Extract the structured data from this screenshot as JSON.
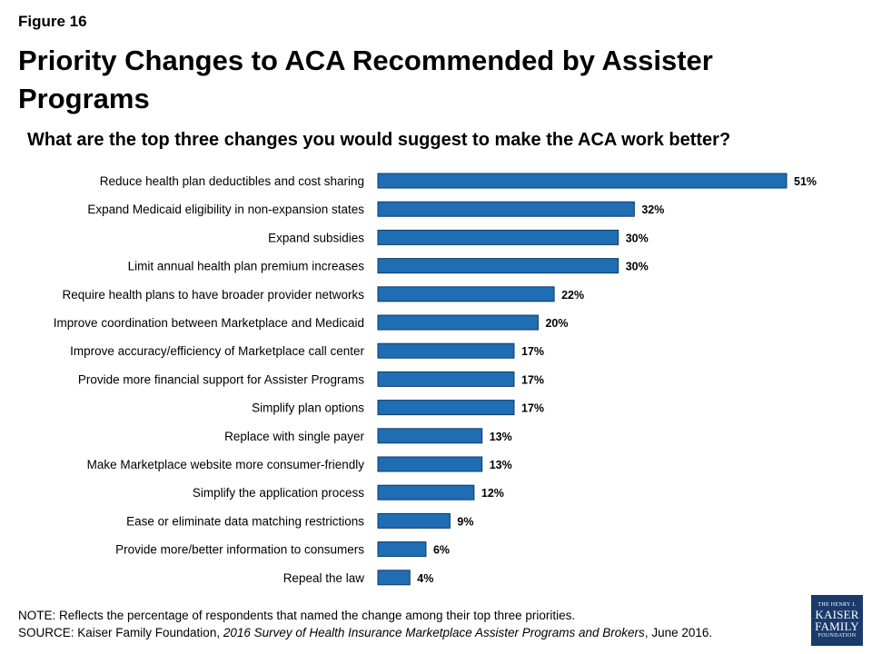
{
  "figure_label": "Figure 16",
  "title": "Priority Changes to ACA Recommended by Assister Programs",
  "chart_data": {
    "type": "bar",
    "orientation": "horizontal",
    "title": "What are the top three changes you would suggest to make the ACA work better?",
    "xlabel": "",
    "ylabel": "",
    "xlim": [
      0,
      51
    ],
    "value_suffix": "%",
    "grid": false,
    "categories": [
      "Reduce health plan deductibles and cost sharing",
      "Expand Medicaid eligibility in non-expansion states",
      "Expand subsidies",
      "Limit annual health plan premium increases",
      "Require health plans to have broader provider networks",
      "Improve coordination between Marketplace and Medicaid",
      "Improve accuracy/efficiency of Marketplace call center",
      "Provide more financial support for Assister Programs",
      "Simplify plan options",
      "Replace with single payer",
      "Make Marketplace website more consumer-friendly",
      "Simplify the application process",
      "Ease or eliminate data matching restrictions",
      "Provide more/better information to consumers",
      "Repeal the law"
    ],
    "values": [
      51,
      32,
      30,
      30,
      22,
      20,
      17,
      17,
      17,
      13,
      13,
      12,
      9,
      6,
      4
    ],
    "bar_color": "#1f6db3"
  },
  "note": {
    "note_text": "NOTE: Reflects the percentage of respondents that named the change among their top three priorities.",
    "source_prefix": "SOURCE: Kaiser Family Foundation, ",
    "source_title": "2016 Survey of Health Insurance Marketplace Assister Programs and Brokers",
    "source_suffix": ", June 2016."
  },
  "logo": {
    "line1": "THE HENRY J.",
    "line2": "KAISER",
    "line3": "FAMILY",
    "line4": "FOUNDATION"
  }
}
